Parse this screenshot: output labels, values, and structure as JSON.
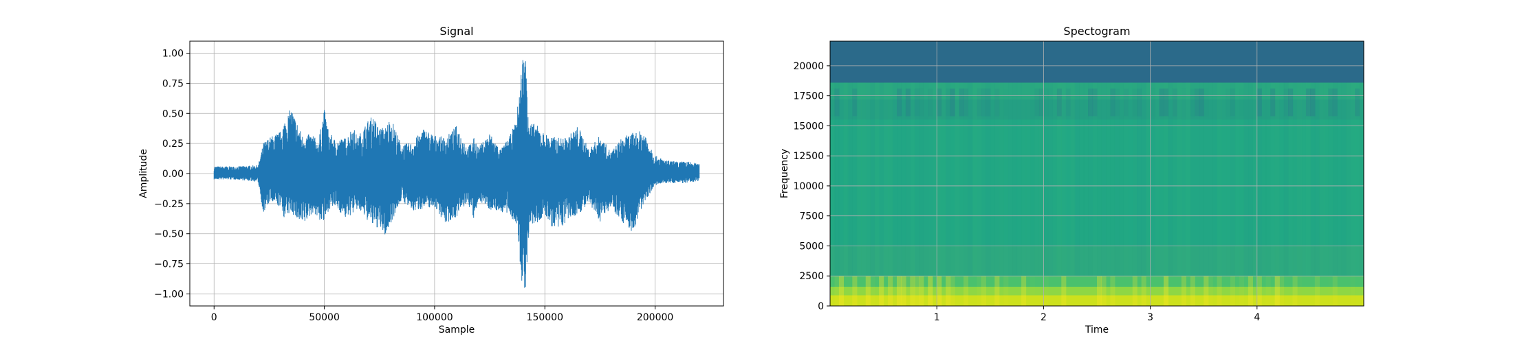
{
  "chart_data": [
    {
      "type": "line",
      "title": "Signal",
      "xlabel": "Sample",
      "ylabel": "Amplitude",
      "xlim": [
        -11000,
        231000
      ],
      "ylim": [
        -1.1,
        1.1
      ],
      "xticks": [
        0,
        50000,
        100000,
        150000,
        200000
      ],
      "xtick_labels": [
        "0",
        "50000",
        "100000",
        "150000",
        "200000"
      ],
      "yticks": [
        1.0,
        0.75,
        0.5,
        0.25,
        0.0,
        -0.25,
        -0.5,
        -0.75,
        -1.0
      ],
      "ytick_labels": [
        "1.00",
        "0.75",
        "0.50",
        "0.25",
        "0.00",
        "−0.25",
        "−0.50",
        "−0.75",
        "−1.00"
      ],
      "grid": true,
      "color": "#1f77b4",
      "envelope": {
        "x": [
          0,
          10000,
          20000,
          22500,
          25000,
          30000,
          32000,
          35000,
          40000,
          45000,
          47000,
          50000,
          52000,
          55000,
          60000,
          63000,
          65000,
          70000,
          72000,
          75000,
          78000,
          80000,
          85000,
          90000,
          95000,
          100000,
          105000,
          110000,
          115000,
          118000,
          120000,
          125000,
          130000,
          134000,
          137000,
          140000,
          141500,
          143000,
          146000,
          150000,
          155000,
          160000,
          165000,
          170000,
          175000,
          180000,
          185000,
          190000,
          195000,
          200000,
          205000,
          210000,
          215000,
          220000
        ],
        "upper": [
          0.06,
          0.06,
          0.07,
          0.26,
          0.3,
          0.35,
          0.45,
          0.55,
          0.32,
          0.33,
          0.25,
          0.54,
          0.35,
          0.28,
          0.3,
          0.4,
          0.3,
          0.45,
          0.48,
          0.38,
          0.39,
          0.48,
          0.24,
          0.26,
          0.38,
          0.32,
          0.3,
          0.4,
          0.22,
          0.3,
          0.22,
          0.34,
          0.2,
          0.31,
          0.44,
          1.0,
          0.98,
          0.43,
          0.41,
          0.33,
          0.3,
          0.3,
          0.4,
          0.2,
          0.32,
          0.18,
          0.3,
          0.34,
          0.36,
          0.15,
          0.11,
          0.1,
          0.1,
          0.08
        ],
        "lower": [
          -0.05,
          -0.05,
          -0.07,
          -0.35,
          -0.24,
          -0.28,
          -0.38,
          -0.32,
          -0.45,
          -0.32,
          -0.38,
          -0.42,
          -0.3,
          -0.28,
          -0.38,
          -0.33,
          -0.3,
          -0.4,
          -0.44,
          -0.46,
          -0.53,
          -0.42,
          -0.22,
          -0.32,
          -0.29,
          -0.28,
          -0.42,
          -0.36,
          -0.24,
          -0.4,
          -0.22,
          -0.3,
          -0.32,
          -0.35,
          -0.42,
          -1.0,
          -0.95,
          -0.43,
          -0.43,
          -0.35,
          -0.5,
          -0.4,
          -0.34,
          -0.26,
          -0.4,
          -0.28,
          -0.4,
          -0.5,
          -0.24,
          -0.1,
          -0.08,
          -0.08,
          -0.08,
          -0.06
        ]
      }
    },
    {
      "type": "heatmap",
      "title": "Spectogram",
      "xlabel": "Time",
      "ylabel": "Frequency",
      "xlim": [
        0,
        5.0
      ],
      "ylim": [
        0,
        22050
      ],
      "xticks": [
        1,
        2,
        3,
        4
      ],
      "xtick_labels": [
        "1",
        "2",
        "3",
        "4"
      ],
      "yticks": [
        0,
        2500,
        5000,
        7500,
        10000,
        12500,
        15000,
        17500,
        20000
      ],
      "ytick_labels": [
        "0",
        "2500",
        "5000",
        "7500",
        "10000",
        "12500",
        "15000",
        "17500",
        "20000"
      ],
      "grid": true,
      "colormap": "viridis",
      "color_bands": [
        {
          "from": 0,
          "to": 900,
          "color": "#cde11d"
        },
        {
          "from": 900,
          "to": 1600,
          "color": "#8fd744"
        },
        {
          "from": 1600,
          "to": 2500,
          "color": "#4ac16d"
        },
        {
          "from": 2500,
          "to": 5000,
          "color": "#2ea97f"
        },
        {
          "from": 5000,
          "to": 15500,
          "color": "#22a884"
        },
        {
          "from": 15500,
          "to": 17200,
          "color": "#25a083"
        },
        {
          "from": 17200,
          "to": 18600,
          "color": "#2aa881"
        },
        {
          "from": 18600,
          "to": 22050,
          "color": "#2b6a8a"
        }
      ]
    }
  ]
}
